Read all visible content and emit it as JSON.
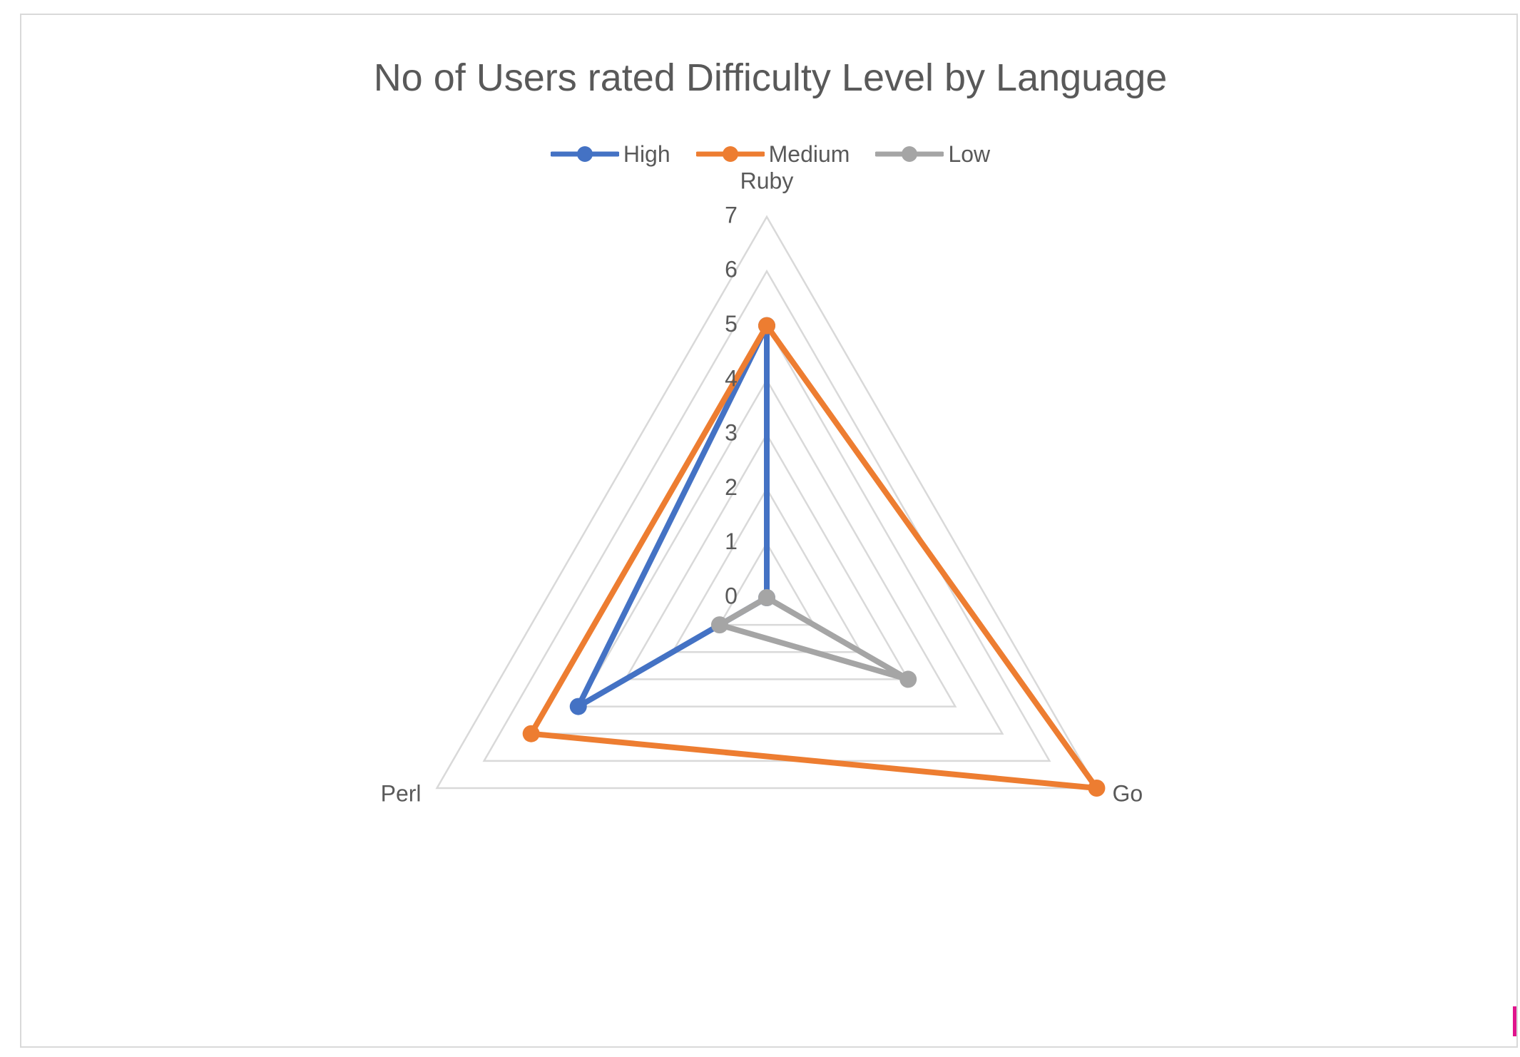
{
  "chart_data": {
    "type": "radar",
    "title": "No of Users rated Difficulty Level by Language",
    "categories": [
      "Ruby",
      "Go",
      "Perl"
    ],
    "series": [
      {
        "name": "High",
        "values": [
          5,
          0,
          4
        ],
        "color": "#4472C4"
      },
      {
        "name": "Medium",
        "values": [
          5,
          7,
          5
        ],
        "color": "#ED7D31"
      },
      {
        "name": "Low",
        "values": [
          0,
          3,
          1
        ],
        "color": "#A5A5A5"
      }
    ],
    "radial_axis": {
      "min": 0,
      "max": 7,
      "step": 1,
      "tick_labels": [
        "0",
        "1",
        "2",
        "3",
        "4",
        "5",
        "6",
        "7"
      ]
    },
    "grid": true,
    "legend_position": "top"
  }
}
